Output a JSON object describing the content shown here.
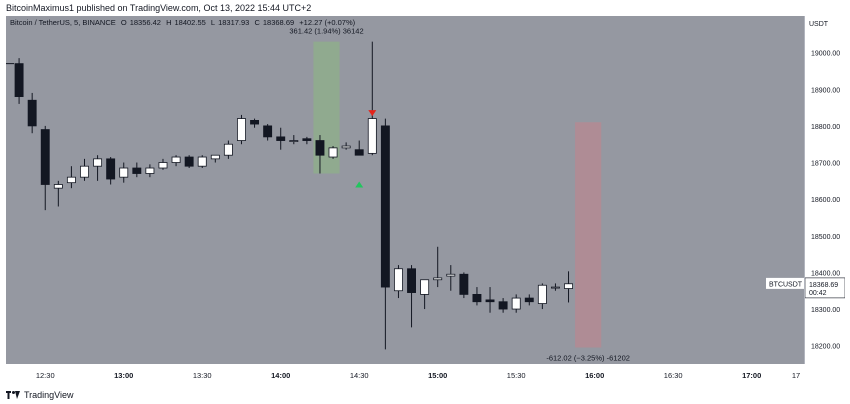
{
  "header": {
    "text": "BitcoinMaximus1 published on TradingView.com, Oct 13, 2022 15:44 UTC+2"
  },
  "legend": {
    "symbol": "Bitcoin / TetherUS, 5, BINANCE",
    "open_label": "O",
    "open": "18356.42",
    "high_label": "H",
    "high": "18402.55",
    "low_label": "L",
    "low": "18317.93",
    "close_label": "C",
    "close": "18368.69",
    "change": "+12.27 (+0.07%)"
  },
  "price_axis": {
    "currency": "USDT",
    "ticks": [
      "19000.00",
      "18900.00",
      "18800.00",
      "18700.00",
      "18600.00",
      "18500.00",
      "18400.00",
      "18300.00",
      "18200.00"
    ],
    "last_label": "BTCUSDT",
    "last_price": "18368.69",
    "countdown": "00:42"
  },
  "time_axis": {
    "ticks": [
      "12:30",
      "13:00",
      "13:30",
      "14:00",
      "14:30",
      "15:00",
      "15:30",
      "16:00",
      "16:30",
      "17:00",
      "17"
    ]
  },
  "annotations": {
    "measure_up": "361.42 (1.94%) 36142",
    "measure_down": "-612.02 (−3.25%) -61202"
  },
  "colors": {
    "background": "#9598a1",
    "candle_up": "#ffffff",
    "candle_down": "#131722",
    "range_up": "#8fad8c",
    "range_down": "#b48a93",
    "arrow_down": "#e3241b",
    "arrow_up": "#22c55e"
  },
  "footer": {
    "brand": "TradingView",
    "logo_icon": "tradingview-logo-icon"
  },
  "chart_data": {
    "type": "candlestick",
    "interval": "5",
    "x_range": [
      "12:15",
      "17:20"
    ],
    "ylim": [
      18150,
      19100
    ],
    "candles": [
      {
        "t": "12:20",
        "o": 18970,
        "h": 18985,
        "l": 18860,
        "c": 18880
      },
      {
        "t": "12:25",
        "o": 18870,
        "h": 18890,
        "l": 18780,
        "c": 18800
      },
      {
        "t": "12:30",
        "o": 18790,
        "h": 18800,
        "l": 18570,
        "c": 18640
      },
      {
        "t": "12:35",
        "o": 18630,
        "h": 18650,
        "l": 18580,
        "c": 18640
      },
      {
        "t": "12:40",
        "o": 18645,
        "h": 18690,
        "l": 18630,
        "c": 18660
      },
      {
        "t": "12:45",
        "o": 18660,
        "h": 18710,
        "l": 18650,
        "c": 18690
      },
      {
        "t": "12:50",
        "o": 18690,
        "h": 18720,
        "l": 18650,
        "c": 18710
      },
      {
        "t": "12:55",
        "o": 18710,
        "h": 18715,
        "l": 18640,
        "c": 18655
      },
      {
        "t": "13:00",
        "o": 18660,
        "h": 18700,
        "l": 18645,
        "c": 18685
      },
      {
        "t": "13:05",
        "o": 18685,
        "h": 18700,
        "l": 18660,
        "c": 18670
      },
      {
        "t": "13:10",
        "o": 18670,
        "h": 18695,
        "l": 18660,
        "c": 18685
      },
      {
        "t": "13:15",
        "o": 18685,
        "h": 18710,
        "l": 18680,
        "c": 18700
      },
      {
        "t": "13:20",
        "o": 18700,
        "h": 18720,
        "l": 18690,
        "c": 18715
      },
      {
        "t": "13:25",
        "o": 18715,
        "h": 18720,
        "l": 18685,
        "c": 18690
      },
      {
        "t": "13:30",
        "o": 18690,
        "h": 18720,
        "l": 18685,
        "c": 18715
      },
      {
        "t": "13:35",
        "o": 18710,
        "h": 18720,
        "l": 18700,
        "c": 18720
      },
      {
        "t": "13:40",
        "o": 18720,
        "h": 18760,
        "l": 18710,
        "c": 18750
      },
      {
        "t": "13:45",
        "o": 18760,
        "h": 18830,
        "l": 18750,
        "c": 18820
      },
      {
        "t": "13:50",
        "o": 18815,
        "h": 18820,
        "l": 18795,
        "c": 18805
      },
      {
        "t": "13:55",
        "o": 18800,
        "h": 18805,
        "l": 18760,
        "c": 18770
      },
      {
        "t": "14:00",
        "o": 18770,
        "h": 18795,
        "l": 18735,
        "c": 18760
      },
      {
        "t": "14:05",
        "o": 18760,
        "h": 18775,
        "l": 18750,
        "c": 18760
      },
      {
        "t": "14:10",
        "o": 18765,
        "h": 18770,
        "l": 18750,
        "c": 18760
      },
      {
        "t": "14:15",
        "o": 18760,
        "h": 18775,
        "l": 18670,
        "c": 18720
      },
      {
        "t": "14:20",
        "o": 18715,
        "h": 18745,
        "l": 18710,
        "c": 18740
      },
      {
        "t": "14:25",
        "o": 18740,
        "h": 18755,
        "l": 18735,
        "c": 18745
      },
      {
        "t": "14:30",
        "o": 18735,
        "h": 18760,
        "l": 18720,
        "c": 18720
      },
      {
        "t": "14:35",
        "o": 18725,
        "h": 19030,
        "l": 18720,
        "c": 18820
      },
      {
        "t": "14:40",
        "o": 18800,
        "h": 18820,
        "l": 18190,
        "c": 18360
      },
      {
        "t": "14:45",
        "o": 18350,
        "h": 18420,
        "l": 18330,
        "c": 18410
      },
      {
        "t": "14:50",
        "o": 18410,
        "h": 18420,
        "l": 18250,
        "c": 18345
      },
      {
        "t": "14:55",
        "o": 18340,
        "h": 18380,
        "l": 18300,
        "c": 18380
      },
      {
        "t": "15:00",
        "o": 18380,
        "h": 18470,
        "l": 18360,
        "c": 18385
      },
      {
        "t": "15:05",
        "o": 18390,
        "h": 18420,
        "l": 18350,
        "c": 18395
      },
      {
        "t": "15:10",
        "o": 18395,
        "h": 18400,
        "l": 18330,
        "c": 18340
      },
      {
        "t": "15:15",
        "o": 18340,
        "h": 18360,
        "l": 18310,
        "c": 18320
      },
      {
        "t": "15:20",
        "o": 18325,
        "h": 18360,
        "l": 18290,
        "c": 18320
      },
      {
        "t": "15:25",
        "o": 18320,
        "h": 18330,
        "l": 18290,
        "c": 18300
      },
      {
        "t": "15:30",
        "o": 18300,
        "h": 18340,
        "l": 18290,
        "c": 18330
      },
      {
        "t": "15:35",
        "o": 18330,
        "h": 18340,
        "l": 18310,
        "c": 18320
      },
      {
        "t": "15:40",
        "o": 18315,
        "h": 18370,
        "l": 18300,
        "c": 18365
      },
      {
        "t": "15:45",
        "o": 18360,
        "h": 18370,
        "l": 18350,
        "c": 18360
      },
      {
        "t": "15:50",
        "o": 18356,
        "h": 18403,
        "l": 18318,
        "c": 18369
      }
    ],
    "range_up": {
      "t0": "14:15",
      "t1": "14:20",
      "y0": 18670,
      "y1": 19030
    },
    "range_down": {
      "t0": "15:55",
      "t1": "16:00",
      "y0": 18195,
      "y1": 18810
    },
    "arrow_down": {
      "t": "14:35",
      "y": 18835
    },
    "arrow_up": {
      "t": "14:30",
      "y": 18640
    }
  }
}
